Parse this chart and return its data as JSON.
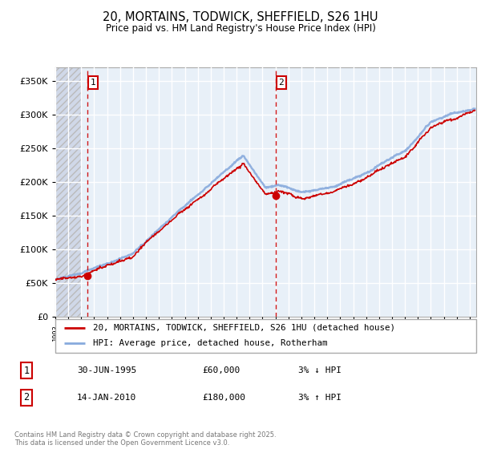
{
  "title": "20, MORTAINS, TODWICK, SHEFFIELD, S26 1HU",
  "subtitle": "Price paid vs. HM Land Registry's House Price Index (HPI)",
  "legend_line1": "20, MORTAINS, TODWICK, SHEFFIELD, S26 1HU (detached house)",
  "legend_line2": "HPI: Average price, detached house, Rotherham",
  "annotation1_date": "30-JUN-1995",
  "annotation1_price": "£60,000",
  "annotation1_hpi": "3% ↓ HPI",
  "annotation2_date": "14-JAN-2010",
  "annotation2_price": "£180,000",
  "annotation2_hpi": "3% ↑ HPI",
  "footer": "Contains HM Land Registry data © Crown copyright and database right 2025.\nThis data is licensed under the Open Government Licence v3.0.",
  "hpi_color": "#88aadd",
  "price_color": "#cc0000",
  "annotation_color": "#cc0000",
  "point1_x": 1995.5,
  "point1_y": 60000,
  "point2_x": 2010.04,
  "point2_y": 180000,
  "ylim": [
    0,
    370000
  ],
  "xlim_start": 1993.0,
  "xlim_end": 2025.5,
  "hatch_end": 1995.0
}
